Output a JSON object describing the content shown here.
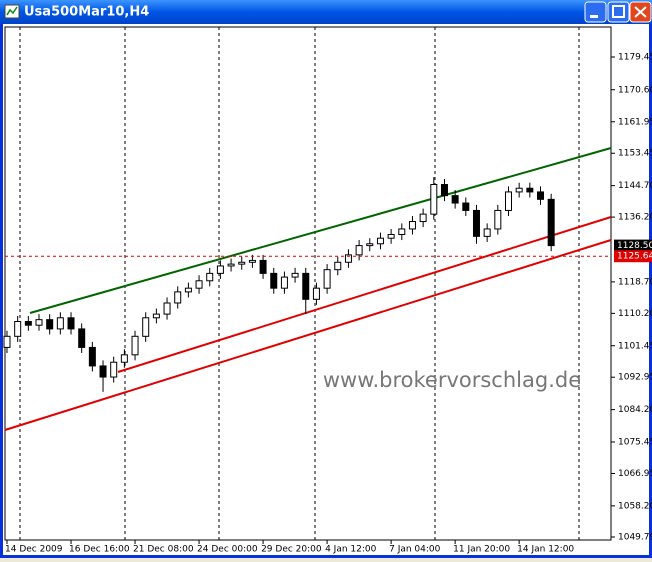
{
  "chart_data": {
    "type": "candlestick",
    "title": "Usa500Mar10,H4",
    "watermark": "www.brokervorschlag.de",
    "categories": [
      "14 Dec 2009",
      null,
      null,
      null,
      null,
      null,
      "16 Dec 16:00",
      null,
      null,
      null,
      null,
      null,
      "21 Dec 08:00",
      null,
      null,
      null,
      null,
      null,
      "24 Dec 00:00",
      null,
      null,
      null,
      null,
      null,
      "29 Dec 20:00",
      null,
      null,
      null,
      null,
      null,
      "4 Jan 12:00",
      null,
      null,
      null,
      null,
      null,
      "7 Jan 04:00",
      null,
      null,
      null,
      null,
      null,
      "11 Jan 20:00",
      null,
      null,
      null,
      null,
      null,
      "14 Jan 12:00",
      null,
      null,
      null
    ],
    "open": [
      1101,
      1104,
      1108,
      1107,
      1108.5,
      1106,
      1109,
      1106,
      1101,
      1096,
      1093,
      1097,
      1099,
      1104,
      1109,
      1110,
      1113,
      1116,
      1117,
      1119,
      1121,
      1123,
      1123.5,
      1124,
      1124.5,
      1121,
      1117,
      1120,
      1121,
      1114,
      1117,
      1122,
      1124,
      1126,
      1128.5,
      1129,
      1130.5,
      1131.5,
      1133,
      1135,
      1137,
      1145,
      1142,
      1140,
      1138,
      1131,
      1133,
      1138,
      1143,
      1144,
      1143,
      1141
    ],
    "high": [
      1105.5,
      1109.5,
      1109.5,
      1110,
      1110,
      1110.5,
      1110.5,
      1107.5,
      1102.5,
      1097.5,
      1098.5,
      1100.5,
      1105.5,
      1110.5,
      1111.5,
      1114.5,
      1117.5,
      1118.5,
      1120.5,
      1122.5,
      1124.5,
      1125,
      1125.5,
      1126,
      1126,
      1122.5,
      1121.5,
      1122.5,
      1122.5,
      1118.5,
      1123.5,
      1125.5,
      1127.5,
      1130,
      1130.5,
      1132,
      1133,
      1134.5,
      1136.5,
      1138.5,
      1147,
      1146.5,
      1143.5,
      1141.5,
      1139.5,
      1134.5,
      1139.5,
      1144.5,
      1145.5,
      1145.5,
      1144.5,
      1142.5
    ],
    "low": [
      1099.5,
      1102.5,
      1105.5,
      1105.5,
      1104.5,
      1104.5,
      1104.5,
      1099.5,
      1094.5,
      1089,
      1091.5,
      1095.5,
      1097.5,
      1102.5,
      1107.5,
      1108.5,
      1111.5,
      1114.5,
      1115.5,
      1117.5,
      1119.5,
      1121.5,
      1122,
      1122.5,
      1119.5,
      1115.5,
      1115.5,
      1118.5,
      1110,
      1112.5,
      1115.5,
      1120.5,
      1122.5,
      1124.5,
      1127,
      1127.5,
      1129,
      1130,
      1131.5,
      1133.5,
      1135.5,
      1140.5,
      1138.5,
      1136.5,
      1129,
      1129.5,
      1131.5,
      1136.5,
      1141.5,
      1141.5,
      1139.5,
      1127
    ],
    "close": [
      1104,
      1108,
      1107,
      1108.5,
      1106,
      1109,
      1106,
      1101,
      1096,
      1093,
      1097,
      1099,
      1104,
      1109,
      1110,
      1113,
      1116,
      1117,
      1119,
      1121,
      1123,
      1123.5,
      1124,
      1124.5,
      1121,
      1117,
      1120,
      1121,
      1114,
      1117,
      1122,
      1124,
      1126,
      1128.5,
      1129,
      1130.5,
      1131.5,
      1133,
      1135,
      1137,
      1145,
      1142,
      1140,
      1138,
      1131,
      1133,
      1138,
      1143,
      1144,
      1143,
      1141,
      1128.5
    ],
    "up_color": "#ffffff",
    "down_color": "#000000",
    "ylim": [
      1048.98,
      1187.55
    ],
    "yticks": [
      1179.45,
      {
        "value": 1170.6,
        "label": "1170.60"
      },
      1161.95,
      1153.45,
      {
        "value": 1144.7,
        "label": "1144.70"
      },
      {
        "value": 1136.2,
        "label": "1136.20"
      },
      {
        "value": 1118.7,
        "label": "1118.70"
      },
      {
        "value": 1110.2,
        "label": "1110.20"
      },
      1101.45,
      1092.95,
      {
        "value": 1084.2,
        "label": "1084.20"
      },
      1075.45,
      1066.95,
      {
        "value": 1058.2,
        "label": "1058.20"
      },
      1049.79
    ],
    "price_labels": [
      {
        "value": 1128.5,
        "label": "1128.50",
        "color": "#000000"
      },
      {
        "value": 1125.64,
        "label": "1125.64",
        "color": "#e00000",
        "line": true
      }
    ]
  }
}
